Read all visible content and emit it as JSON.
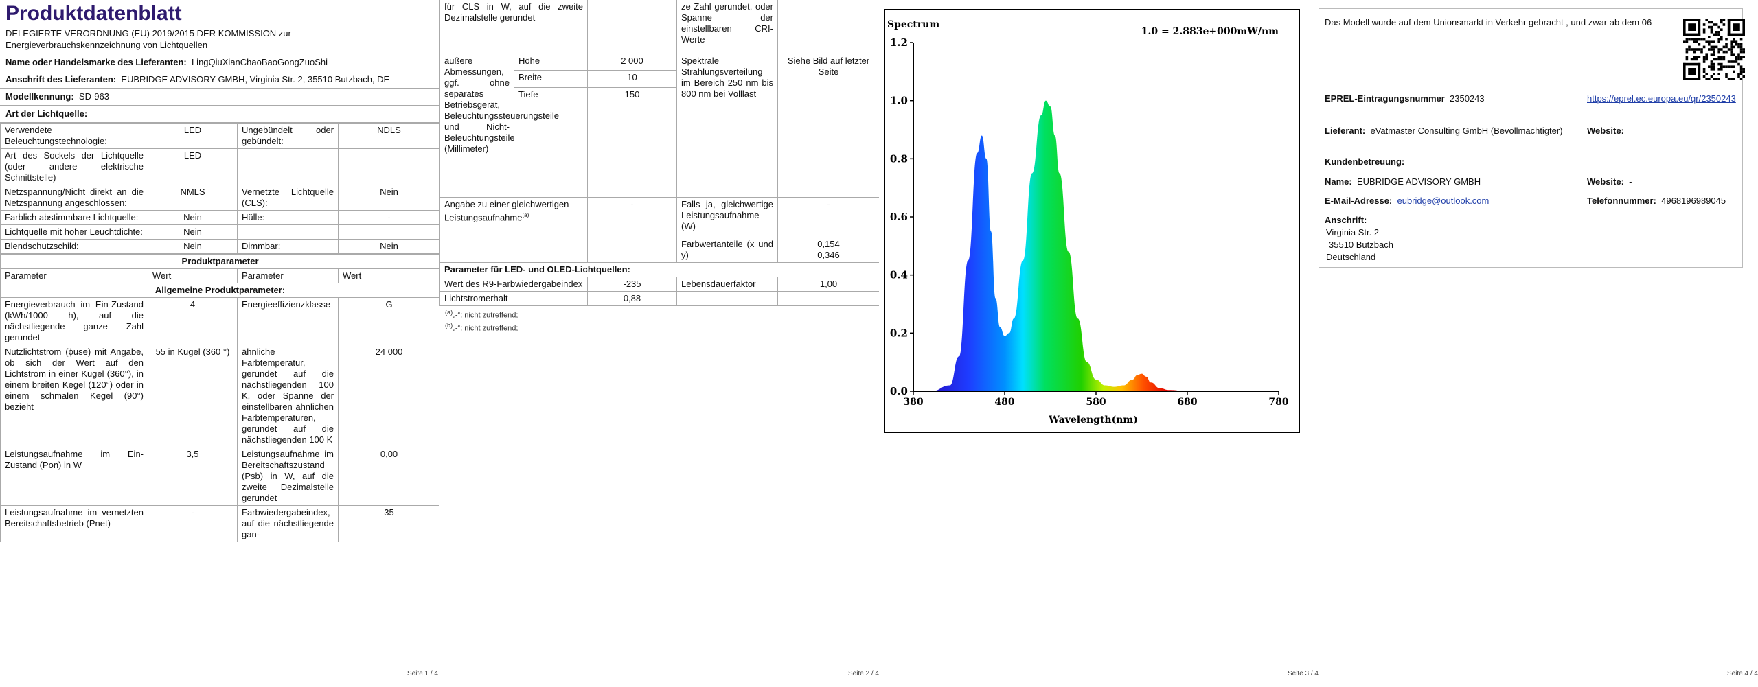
{
  "page1": {
    "title": "Produktdatenblatt",
    "regulation": "DELEGIERTE VERORDNUNG (EU) 2019/2015 DER KOMMISSION zur Energieverbrauchskennzeichnung von Lichtquellen",
    "brand_label": "Name oder Handelsmarke des Lieferanten:",
    "brand_value": "LingQiuXianChaoBaoGongZuoShi",
    "address_label": "Anschrift des Lieferanten:",
    "address_value": "EUBRIDGE ADVISORY GMBH, Virginia Str. 2, 35510 Butzbach, DE",
    "model_label": "Modellkennung:",
    "model_value": "SD-963",
    "type_header": "Art der Lichtquelle:",
    "rows": [
      [
        "Verwendete Beleuchtungstechnologie:",
        "LED",
        "Ungebündelt oder gebündelt:",
        "NDLS"
      ],
      [
        "Art des Sockels der Lichtquelle (oder andere elektrische Schnittstelle)",
        "LED",
        "",
        ""
      ],
      [
        "Netzspannung/Nicht direkt an die Netzspannung angeschlossen:",
        "NMLS",
        "Vernetzte Lichtquelle (CLS):",
        "Nein"
      ],
      [
        "Farblich abstimmbare Lichtquelle:",
        "Nein",
        "Hülle:",
        "-"
      ],
      [
        "Lichtquelle mit hoher Leuchtdichte:",
        "Nein",
        "",
        ""
      ],
      [
        "Blendschutzschild:",
        "Nein",
        "Dimmbar:",
        "Nein"
      ]
    ],
    "product_params_header": "Produktparameter",
    "param_cols": [
      "Parameter",
      "Wert",
      "Parameter",
      "Wert"
    ],
    "general_header": "Allgemeine Produktparameter:",
    "general_rows": [
      [
        "Energieverbrauch im Ein-Zustand (kWh/1000 h), auf die nächstliegende ganze Zahl gerundet",
        "4",
        "Energieeffizienzklasse",
        "G"
      ],
      [
        "Nutzlichtstrom (ϕuse) mit Angabe, ob sich der Wert auf den Lichtstrom in einer Kugel (360°), in einem breiten Kegel (120°) oder in einem schmalen Kegel (90°) bezieht",
        "55 in Kugel (360 °)",
        "ähnliche Farbtemperatur, gerundet auf die nächstliegenden 100 K, oder Spanne der einstellbaren ähnlichen Farbtemperaturen, gerundet auf die nächstliegenden 100 K",
        "24 000"
      ],
      [
        "Leistungsaufnahme im Ein-Zustand (Pon) in W",
        "3,5",
        "Leistungsaufnahme im Bereitschaftszustand (Psb) in W, auf die zweite Dezimalstelle gerundet",
        "0,00"
      ],
      [
        "Leistungsaufnahme im vernetzten Bereitschaftsbetrieb (Pnet)",
        "-",
        "Farbwiedergabeindex, auf die nächstliegende gan-",
        "35"
      ]
    ],
    "page_no": "Seite 1 / 4"
  },
  "page2": {
    "top_left": "für CLS in W, auf die zweite Dezimalstelle gerundet",
    "top_right": "ze Zahl gerundet, oder Spanne der einstellbaren CRI-Werte",
    "dim_label": "äußere Abmessungen, ggf. ohne separates Betriebsgerät, Beleuchtungssteuerungsteile und Nicht-Beleuchtungsteile (Millimeter)",
    "dims": [
      [
        "Höhe",
        "2 000"
      ],
      [
        "Breite",
        "10"
      ],
      [
        "Tiefe",
        "150"
      ]
    ],
    "spectral_label": "Spektrale Strahlungsverteilung im Bereich 250 nm bis 800 nm bei Volllast",
    "spectral_value": "Siehe Bild auf letzter Seite",
    "equiv_label": "Angabe zu einer gleichwertigen Leistungsaufnahme",
    "equiv_sup": "(a)",
    "equiv_value": "-",
    "ifyes_label": "Falls ja, gleichwertige Leistungsaufnahme (W)",
    "ifyes_value": "-",
    "chroma_label": "Farbwertanteile (x und y)",
    "chroma_x": "0,154",
    "chroma_y": "0,346",
    "led_header": "Parameter für LED- und OLED-Lichtquellen:",
    "r9_label": "Wert des R9-Farbwiedergabeindex",
    "r9_value": "-235",
    "life_label": "Lebensdauerfaktor",
    "life_value": "1,00",
    "maint_label": "Lichtstromerhalt",
    "maint_value": "0,88",
    "note_a_mark": "(a)",
    "note_a": "„-“: nicht zutreffend;",
    "note_b_mark": "(b)",
    "note_b": "„-“: nicht zutreffend;",
    "page_no": "Seite 2 / 4"
  },
  "page3": {
    "page_no": "Seite 3 / 4"
  },
  "page4": {
    "intro": "Das Modell wurde auf dem Unionsmarkt in Verkehr gebracht , und zwar ab dem 06",
    "eprel_label": "EPREL-Eintragungsnummer",
    "eprel_value": "2350243",
    "eprel_link": "https://eprel.ec.europa.eu/qr/2350243",
    "supplier_label": "Lieferant:",
    "supplier_value": "eVatmaster Consulting GmbH (Bevollmächtigter)",
    "website_label": "Website:",
    "support_label": "Kundenbetreuung:",
    "name_label": "Name:",
    "name_value": "EUBRIDGE ADVISORY GMBH",
    "website2_label": "Website:",
    "website2_value": "-",
    "email_label": "E-Mail-Adresse:",
    "email_value": "eubridge@outlook.com",
    "phone_label": "Telefonnummer:",
    "phone_value": "4968196989045",
    "addr_label": "Anschrift:",
    "addr_line1": "Virginia Str. 2",
    "addr_line2": "35510 Butzbach",
    "addr_line3": "Deutschland",
    "page_no": "Seite 4 / 4"
  },
  "chart_data": {
    "type": "line",
    "title": "Spectrum",
    "annotation": "1.0 = 2.883e+000mW/nm",
    "xlabel": "Wavelength(nm)",
    "ylabel": "",
    "xlim": [
      380,
      780
    ],
    "ylim": [
      0,
      1.2
    ],
    "x_ticks": [
      "380",
      "480",
      "580",
      "680",
      "780"
    ],
    "y_ticks": [
      "0.0",
      "0.2",
      "0.4",
      "0.6",
      "0.8",
      "1.0",
      "1.2"
    ],
    "series": [
      {
        "x": [
          380,
          400,
          420,
          430,
          440,
          450,
          455,
          460,
          465,
          470,
          475,
          480,
          485,
          490,
          500,
          510,
          520,
          525,
          530,
          535,
          540,
          550,
          560,
          570,
          580,
          590,
          600,
          610,
          620,
          625,
          630,
          635,
          640,
          650,
          660,
          680,
          700,
          740,
          780
        ],
        "values": [
          0.0,
          0.0,
          0.02,
          0.12,
          0.45,
          0.82,
          0.88,
          0.8,
          0.55,
          0.32,
          0.22,
          0.19,
          0.2,
          0.25,
          0.45,
          0.75,
          0.95,
          1.0,
          0.98,
          0.88,
          0.75,
          0.48,
          0.25,
          0.1,
          0.04,
          0.02,
          0.015,
          0.02,
          0.04,
          0.055,
          0.06,
          0.05,
          0.03,
          0.01,
          0.004,
          0.0,
          0.0,
          0.0,
          0.0
        ]
      }
    ]
  }
}
